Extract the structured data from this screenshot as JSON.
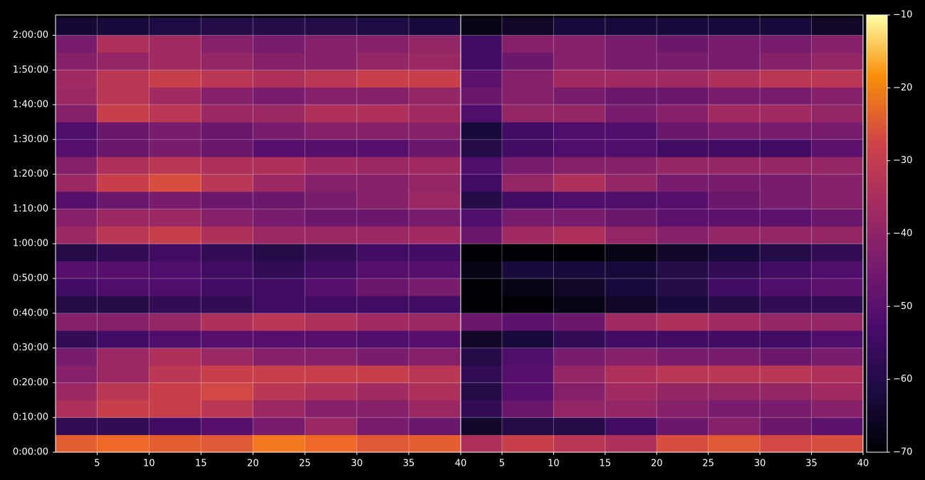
{
  "chart_data": {
    "type": "heatmap",
    "colormap": "inferno",
    "grid": true,
    "ylim": [
      0,
      7550
    ],
    "yticks": [
      {
        "value": 0,
        "label": "0:00:00"
      },
      {
        "value": 600,
        "label": "0:10:00"
      },
      {
        "value": 1200,
        "label": "0:20:00"
      },
      {
        "value": 1800,
        "label": "0:30:00"
      },
      {
        "value": 2400,
        "label": "0:40:00"
      },
      {
        "value": 3000,
        "label": "0:50:00"
      },
      {
        "value": 3600,
        "label": "1:00:00"
      },
      {
        "value": 4200,
        "label": "1:10:00"
      },
      {
        "value": 4800,
        "label": "1:20:00"
      },
      {
        "value": 5400,
        "label": "1:30:00"
      },
      {
        "value": 6000,
        "label": "1:40:00"
      },
      {
        "value": 6600,
        "label": "1:50:00"
      },
      {
        "value": 7200,
        "label": "2:00:00"
      }
    ],
    "y_bins": [
      0,
      300,
      600,
      900,
      1200,
      1500,
      1800,
      2100,
      2400,
      2700,
      3000,
      3300,
      3600,
      3900,
      4200,
      4500,
      4800,
      5100,
      5400,
      5700,
      6000,
      6300,
      6600,
      6900,
      7200,
      7500
    ],
    "x_bins": [
      1,
      5,
      10,
      15,
      20,
      25,
      30,
      35,
      40
    ],
    "clim": [
      -70,
      -10
    ],
    "colorbar_ticks": [
      {
        "value": -70,
        "label": "−70"
      },
      {
        "value": -60,
        "label": "−60"
      },
      {
        "value": -50,
        "label": "−50"
      },
      {
        "value": -40,
        "label": "−40"
      },
      {
        "value": -30,
        "label": "−30"
      },
      {
        "value": -20,
        "label": "−20"
      },
      {
        "value": -10,
        "label": "−10"
      }
    ],
    "panels": [
      {
        "xlim": [
          1,
          40
        ],
        "xticks": [
          5,
          10,
          15,
          20,
          25,
          30,
          35,
          40
        ],
        "values": [
          [
            -32,
            -30,
            -32,
            -33,
            -28,
            -30,
            -33,
            -32
          ],
          [
            -60,
            -60,
            -58,
            -55,
            -50,
            -45,
            -50,
            -52
          ],
          [
            -42,
            -38,
            -38,
            -40,
            -45,
            -48,
            -48,
            -45
          ],
          [
            -45,
            -40,
            -38,
            -36,
            -40,
            -42,
            -44,
            -42
          ],
          [
            -48,
            -45,
            -40,
            -38,
            -38,
            -38,
            -38,
            -40
          ],
          [
            -50,
            -45,
            -42,
            -45,
            -48,
            -48,
            -50,
            -48
          ],
          [
            -60,
            -58,
            -56,
            -55,
            -55,
            -55,
            -56,
            -55
          ],
          [
            -48,
            -48,
            -46,
            -42,
            -40,
            -42,
            -44,
            -45
          ],
          [
            -62,
            -62,
            -60,
            -60,
            -58,
            -58,
            -58,
            -58
          ],
          [
            -58,
            -56,
            -56,
            -58,
            -58,
            -55,
            -52,
            -50
          ],
          [
            -55,
            -55,
            -56,
            -58,
            -60,
            -58,
            -55,
            -55
          ],
          [
            -62,
            -60,
            -58,
            -60,
            -62,
            -60,
            -58,
            -58
          ],
          [
            -45,
            -40,
            -38,
            -42,
            -45,
            -45,
            -45,
            -44
          ],
          [
            -48,
            -45,
            -45,
            -48,
            -50,
            -52,
            -52,
            -50
          ],
          [
            -55,
            -52,
            -50,
            -52,
            -52,
            -50,
            -48,
            -45
          ],
          [
            -45,
            -38,
            -35,
            -40,
            -45,
            -48,
            -48,
            -46
          ],
          [
            -48,
            -42,
            -40,
            -42,
            -42,
            -44,
            -45,
            -44
          ],
          [
            -55,
            -52,
            -50,
            -52,
            -55,
            -55,
            -55,
            -52
          ],
          [
            -56,
            -52,
            -50,
            -52,
            -50,
            -48,
            -48,
            -48
          ],
          [
            -48,
            -38,
            -40,
            -45,
            -45,
            -42,
            -42,
            -44
          ],
          [
            -45,
            -40,
            -44,
            -48,
            -50,
            -48,
            -48,
            -46
          ],
          [
            -44,
            -40,
            -38,
            -40,
            -42,
            -40,
            -38,
            -38
          ],
          [
            -48,
            -46,
            -44,
            -46,
            -48,
            -48,
            -46,
            -45
          ],
          [
            -50,
            -42,
            -44,
            -48,
            -50,
            -48,
            -48,
            -46
          ],
          [
            -65,
            -64,
            -63,
            -62,
            -62,
            -62,
            -63,
            -64
          ]
        ]
      },
      {
        "xlim": [
          1,
          40
        ],
        "xticks": [
          5,
          10,
          15,
          20,
          25,
          30,
          35,
          40
        ],
        "values": [
          [
            -42,
            -38,
            -40,
            -42,
            -35,
            -33,
            -36,
            -35
          ],
          [
            -66,
            -62,
            -62,
            -58,
            -52,
            -48,
            -52,
            -54
          ],
          [
            -60,
            -52,
            -46,
            -46,
            -48,
            -50,
            -50,
            -48
          ],
          [
            -62,
            -55,
            -48,
            -44,
            -46,
            -46,
            -46,
            -44
          ],
          [
            -60,
            -55,
            -46,
            -42,
            -40,
            -40,
            -40,
            -42
          ],
          [
            -62,
            -56,
            -50,
            -48,
            -50,
            -50,
            -52,
            -50
          ],
          [
            -66,
            -64,
            -60,
            -58,
            -58,
            -58,
            -58,
            -56
          ],
          [
            -52,
            -54,
            -52,
            -44,
            -42,
            -44,
            -46,
            -46
          ],
          [
            -70,
            -70,
            -68,
            -66,
            -64,
            -62,
            -60,
            -60
          ],
          [
            -70,
            -68,
            -66,
            -64,
            -62,
            -58,
            -56,
            -54
          ],
          [
            -68,
            -64,
            -64,
            -64,
            -62,
            -60,
            -58,
            -56
          ],
          [
            -70,
            -70,
            -70,
            -68,
            -66,
            -64,
            -62,
            -60
          ],
          [
            -52,
            -44,
            -42,
            -46,
            -48,
            -46,
            -46,
            -46
          ],
          [
            -56,
            -50,
            -50,
            -52,
            -54,
            -54,
            -54,
            -52
          ],
          [
            -62,
            -58,
            -56,
            -56,
            -55,
            -52,
            -50,
            -48
          ],
          [
            -58,
            -46,
            -42,
            -46,
            -50,
            -50,
            -50,
            -48
          ],
          [
            -56,
            -50,
            -48,
            -48,
            -46,
            -46,
            -46,
            -46
          ],
          [
            -62,
            -58,
            -56,
            -56,
            -58,
            -58,
            -58,
            -54
          ],
          [
            -64,
            -58,
            -56,
            -56,
            -52,
            -50,
            -50,
            -50
          ],
          [
            -56,
            -46,
            -46,
            -50,
            -48,
            -44,
            -44,
            -46
          ],
          [
            -52,
            -48,
            -50,
            -52,
            -52,
            -50,
            -50,
            -48
          ],
          [
            -54,
            -48,
            -44,
            -44,
            -44,
            -42,
            -40,
            -40
          ],
          [
            -58,
            -52,
            -48,
            -50,
            -50,
            -50,
            -48,
            -46
          ],
          [
            -58,
            -48,
            -48,
            -50,
            -52,
            -50,
            -50,
            -48
          ],
          [
            -68,
            -66,
            -64,
            -64,
            -64,
            -64,
            -64,
            -66
          ]
        ]
      }
    ]
  }
}
